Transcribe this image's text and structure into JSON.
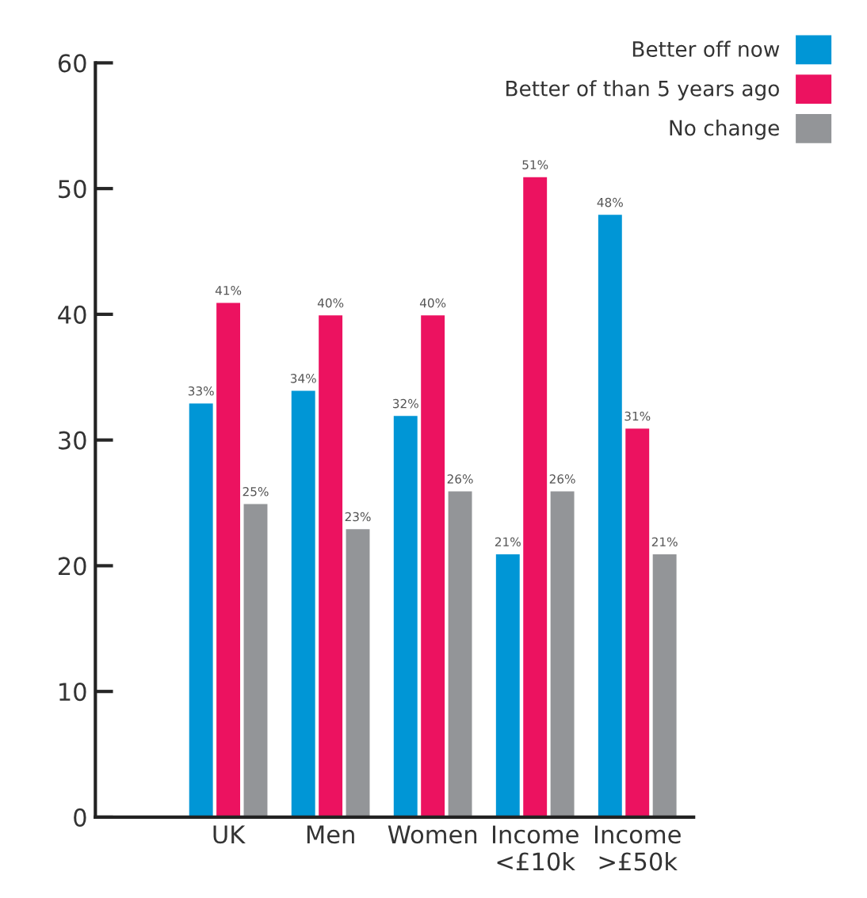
{
  "chart_data": {
    "type": "bar",
    "categories": [
      "UK",
      "Men",
      "Women",
      "Income\n<£10k",
      "Income\n>£50k"
    ],
    "series": [
      {
        "name": "Better off now",
        "color": "#0096d6",
        "values": [
          33,
          34,
          32,
          21,
          48
        ],
        "value_labels": [
          "33%",
          "34%",
          "32%",
          "21%",
          "48%"
        ]
      },
      {
        "name": "Better of than 5 years ago",
        "color": "#ec1260",
        "values": [
          41,
          40,
          40,
          51,
          31
        ],
        "value_labels": [
          "41%",
          "40%",
          "40%",
          "51%",
          "31%"
        ]
      },
      {
        "name": "No change",
        "color": "#939598",
        "values": [
          25,
          23,
          26,
          26,
          21
        ],
        "value_labels": [
          "25%",
          "23%",
          "26%",
          "26%",
          "21%"
        ]
      }
    ],
    "ylim": [
      0,
      60
    ],
    "yticks": [
      0,
      10,
      20,
      30,
      40,
      50,
      60
    ],
    "grid": false,
    "legend": "top right"
  }
}
